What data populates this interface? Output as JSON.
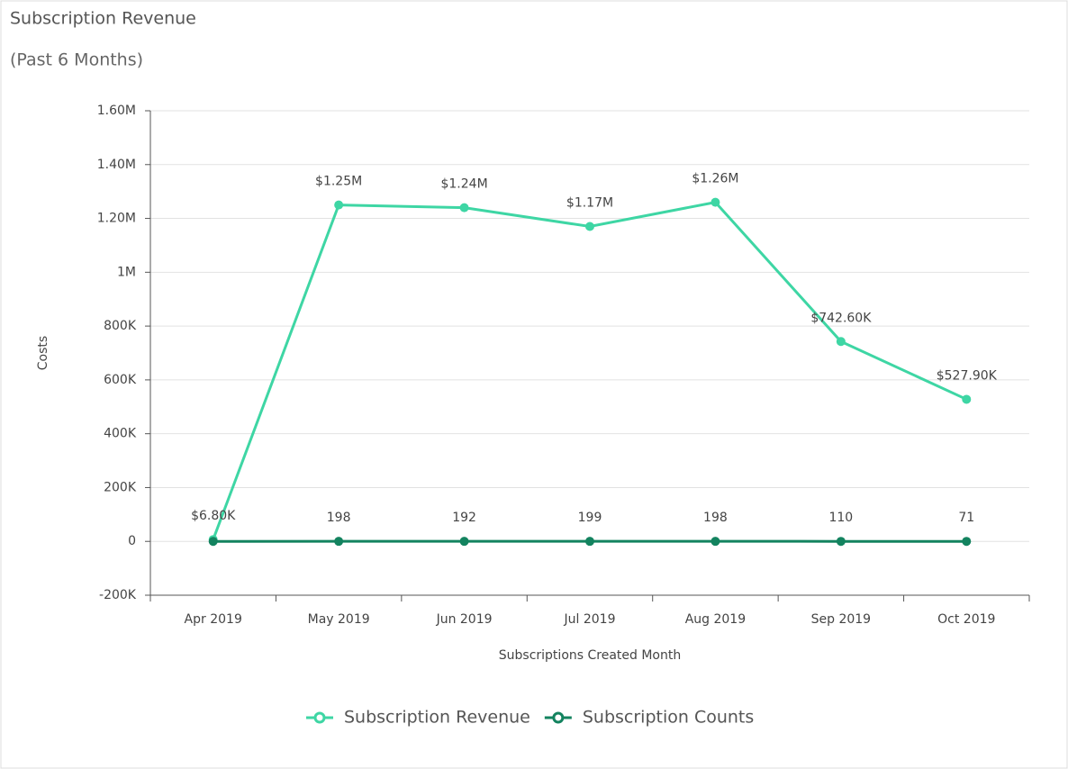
{
  "chart_data": {
    "type": "line",
    "title": "Subscription Revenue",
    "subtitle": "(Past 6 Months)",
    "x_label": "Subscriptions Created Month",
    "y_label": "Costs",
    "categories": [
      "Apr 2019",
      "May 2019",
      "Jun 2019",
      "Jul 2019",
      "Aug 2019",
      "Sep 2019",
      "Oct 2019"
    ],
    "series": [
      {
        "name": "Subscription Revenue",
        "color": "#3ed6a4",
        "values": [
          6800,
          1250000,
          1240000,
          1170000,
          1260000,
          742600,
          527900
        ],
        "value_labels": [
          "$6.80K",
          "$1.25M",
          "$1.24M",
          "$1.17M",
          "$1.26M",
          "$742.60K",
          "$527.90K"
        ]
      },
      {
        "name": "Subscription Counts",
        "color": "#13835f",
        "values": [
          0,
          198,
          192,
          199,
          198,
          110,
          71
        ],
        "value_labels": [
          null,
          "198",
          "192",
          "199",
          "198",
          "110",
          "71"
        ]
      }
    ],
    "ylim": [
      -200000,
      1600000
    ],
    "yticks": [
      {
        "value": -200000,
        "label": "-200K"
      },
      0,
      {
        "value": 200000,
        "label": "200K"
      },
      {
        "value": 400000,
        "label": "400K"
      },
      {
        "value": 600000,
        "label": "600K"
      },
      {
        "value": 800000,
        "label": "800K"
      },
      {
        "value": 1000000,
        "label": "1M"
      },
      {
        "value": 1200000,
        "label": "1.20M"
      },
      {
        "value": 1400000,
        "label": "1.40M"
      },
      {
        "value": 1600000,
        "label": "1.60M"
      }
    ],
    "grid": true,
    "legend": "bottom"
  }
}
